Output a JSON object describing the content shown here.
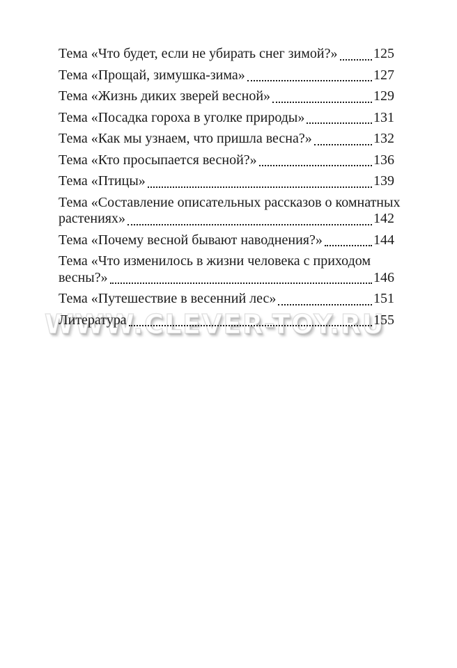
{
  "watermark": {
    "text": "WWW.CLEVER-TOY.RU"
  },
  "toc": {
    "entries": [
      {
        "lines": [
          "Тема «Что будет, если не убирать снег зимой?»"
        ],
        "page": "125"
      },
      {
        "lines": [
          "Тема «Прощай, зимушка-зима»"
        ],
        "page": "127"
      },
      {
        "lines": [
          "Тема «Жизнь диких зверей весной»"
        ],
        "page": "129"
      },
      {
        "lines": [
          "Тема «Посадка гороха в уголке природы»"
        ],
        "page": "131"
      },
      {
        "lines": [
          "Тема «Как мы узнаем, что пришла весна?»"
        ],
        "page": "132"
      },
      {
        "lines": [
          "Тема «Кто просыпается весной?»"
        ],
        "page": "136"
      },
      {
        "lines": [
          "Тема «Птицы»"
        ],
        "page": "139"
      },
      {
        "lines": [
          "Тема «Составление описательных рассказов о комнатных",
          "растениях»"
        ],
        "page": "142"
      },
      {
        "lines": [
          "Тема «Почему весной бывают наводнения?»"
        ],
        "page": "144"
      },
      {
        "lines": [
          "Тема «Что изменилось в жизни человека с приходом",
          "весны?»"
        ],
        "page": "146"
      },
      {
        "lines": [
          "Тема «Путешествие в весенний лес»"
        ],
        "page": "151"
      },
      {
        "lines": [
          "Литература"
        ],
        "page": "155"
      }
    ]
  }
}
